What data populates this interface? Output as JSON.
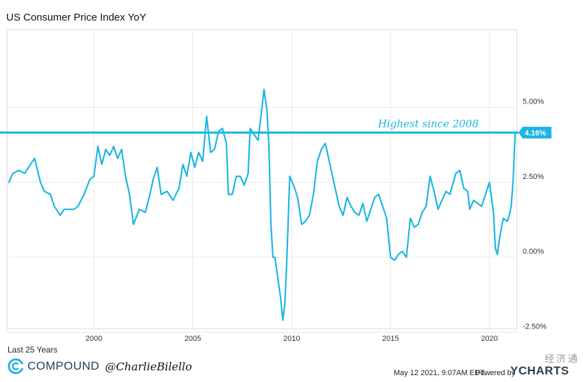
{
  "header": {
    "title": "US Consumer Price Index YoY"
  },
  "footer": {
    "range_label": "Last 25 Years",
    "brand_name": "COMPOUND",
    "brand_handle": "@CharlieBilello",
    "timestamp": "May 12 2021, 9:07AM EDT.",
    "powered_by": "Powered by",
    "provider": "YCHARTS",
    "watermark": "经济通"
  },
  "colors": {
    "series": "#1ab6e4",
    "grid": "#e6e6e6",
    "text": "#222222",
    "badge": "#1ab6e4"
  },
  "chart_data": {
    "type": "line",
    "title": "US Consumer Price Index YoY",
    "x_ticks": [
      "2000",
      "2005",
      "2010",
      "2015",
      "2020"
    ],
    "x_tick_values": [
      2000,
      2005,
      2010,
      2015,
      2020
    ],
    "y_ticks": [
      "5.00%",
      "2.50%",
      "0.00%",
      "-2.50%"
    ],
    "y_tick_values": [
      5,
      2.5,
      0,
      -2.5
    ],
    "xlim": [
      1995.6,
      2021.4
    ],
    "ylim": [
      -2.4,
      7.6
    ],
    "grid": true,
    "reference_line": {
      "value": 4.16,
      "annotation": "Highest since 2008",
      "badge": "4.16%"
    },
    "series": [
      {
        "values": [
          [
            1995.7,
            2.5
          ],
          [
            1995.9,
            2.8
          ],
          [
            1996.2,
            2.9
          ],
          [
            1996.5,
            2.8
          ],
          [
            1996.8,
            3.1
          ],
          [
            1997.0,
            3.3
          ],
          [
            1997.3,
            2.5
          ],
          [
            1997.5,
            2.2
          ],
          [
            1997.8,
            2.1
          ],
          [
            1998.0,
            1.7
          ],
          [
            1998.3,
            1.4
          ],
          [
            1998.5,
            1.6
          ],
          [
            1998.8,
            1.6
          ],
          [
            1999.0,
            1.6
          ],
          [
            1999.2,
            1.7
          ],
          [
            1999.5,
            2.1
          ],
          [
            1999.8,
            2.6
          ],
          [
            2000.0,
            2.7
          ],
          [
            2000.2,
            3.7
          ],
          [
            2000.4,
            3.1
          ],
          [
            2000.6,
            3.6
          ],
          [
            2000.8,
            3.4
          ],
          [
            2001.0,
            3.7
          ],
          [
            2001.2,
            3.3
          ],
          [
            2001.4,
            3.6
          ],
          [
            2001.6,
            2.7
          ],
          [
            2001.8,
            2.1
          ],
          [
            2002.0,
            1.1
          ],
          [
            2002.3,
            1.6
          ],
          [
            2002.6,
            1.5
          ],
          [
            2002.8,
            2.0
          ],
          [
            2003.0,
            2.6
          ],
          [
            2003.2,
            3.0
          ],
          [
            2003.4,
            2.1
          ],
          [
            2003.7,
            2.2
          ],
          [
            2004.0,
            1.9
          ],
          [
            2004.3,
            2.3
          ],
          [
            2004.5,
            3.1
          ],
          [
            2004.7,
            2.7
          ],
          [
            2004.9,
            3.5
          ],
          [
            2005.1,
            3.0
          ],
          [
            2005.3,
            3.5
          ],
          [
            2005.5,
            3.2
          ],
          [
            2005.7,
            4.7
          ],
          [
            2005.9,
            3.5
          ],
          [
            2006.1,
            3.6
          ],
          [
            2006.3,
            4.2
          ],
          [
            2006.5,
            4.3
          ],
          [
            2006.7,
            3.8
          ],
          [
            2006.8,
            2.1
          ],
          [
            2007.0,
            2.1
          ],
          [
            2007.2,
            2.7
          ],
          [
            2007.4,
            2.7
          ],
          [
            2007.6,
            2.4
          ],
          [
            2007.8,
            2.8
          ],
          [
            2007.9,
            4.3
          ],
          [
            2008.1,
            4.1
          ],
          [
            2008.3,
            3.9
          ],
          [
            2008.5,
            5.0
          ],
          [
            2008.6,
            5.6
          ],
          [
            2008.75,
            4.9
          ],
          [
            2008.85,
            3.7
          ],
          [
            2008.95,
            1.1
          ],
          [
            2009.05,
            0.0
          ],
          [
            2009.15,
            0.0
          ],
          [
            2009.3,
            -0.7
          ],
          [
            2009.45,
            -1.4
          ],
          [
            2009.55,
            -2.1
          ],
          [
            2009.65,
            -1.6
          ],
          [
            2009.75,
            -0.2
          ],
          [
            2009.9,
            2.7
          ],
          [
            2010.1,
            2.4
          ],
          [
            2010.3,
            2.0
          ],
          [
            2010.5,
            1.1
          ],
          [
            2010.7,
            1.2
          ],
          [
            2010.9,
            1.4
          ],
          [
            2011.1,
            2.1
          ],
          [
            2011.3,
            3.2
          ],
          [
            2011.5,
            3.6
          ],
          [
            2011.7,
            3.8
          ],
          [
            2011.8,
            3.5
          ],
          [
            2012.0,
            2.9
          ],
          [
            2012.2,
            2.3
          ],
          [
            2012.4,
            1.7
          ],
          [
            2012.6,
            1.4
          ],
          [
            2012.8,
            2.0
          ],
          [
            2013.0,
            1.7
          ],
          [
            2013.2,
            1.5
          ],
          [
            2013.4,
            1.4
          ],
          [
            2013.6,
            1.8
          ],
          [
            2013.8,
            1.2
          ],
          [
            2014.0,
            1.6
          ],
          [
            2014.2,
            2.0
          ],
          [
            2014.4,
            2.1
          ],
          [
            2014.6,
            1.7
          ],
          [
            2014.8,
            1.3
          ],
          [
            2015.0,
            0.0
          ],
          [
            2015.2,
            -0.1
          ],
          [
            2015.4,
            0.1
          ],
          [
            2015.6,
            0.2
          ],
          [
            2015.8,
            0.0
          ],
          [
            2016.0,
            1.3
          ],
          [
            2016.2,
            1.0
          ],
          [
            2016.4,
            1.1
          ],
          [
            2016.6,
            1.5
          ],
          [
            2016.8,
            1.7
          ],
          [
            2017.0,
            2.7
          ],
          [
            2017.2,
            2.2
          ],
          [
            2017.4,
            1.6
          ],
          [
            2017.6,
            1.9
          ],
          [
            2017.8,
            2.2
          ],
          [
            2018.0,
            2.1
          ],
          [
            2018.3,
            2.8
          ],
          [
            2018.5,
            2.9
          ],
          [
            2018.7,
            2.3
          ],
          [
            2018.9,
            2.2
          ],
          [
            2019.0,
            1.6
          ],
          [
            2019.2,
            1.9
          ],
          [
            2019.4,
            1.8
          ],
          [
            2019.6,
            1.7
          ],
          [
            2019.8,
            2.1
          ],
          [
            2020.0,
            2.5
          ],
          [
            2020.2,
            1.5
          ],
          [
            2020.3,
            0.3
          ],
          [
            2020.4,
            0.1
          ],
          [
            2020.5,
            0.6
          ],
          [
            2020.7,
            1.3
          ],
          [
            2020.9,
            1.2
          ],
          [
            2021.0,
            1.4
          ],
          [
            2021.1,
            1.7
          ],
          [
            2021.2,
            2.6
          ],
          [
            2021.3,
            4.16
          ]
        ]
      }
    ]
  }
}
